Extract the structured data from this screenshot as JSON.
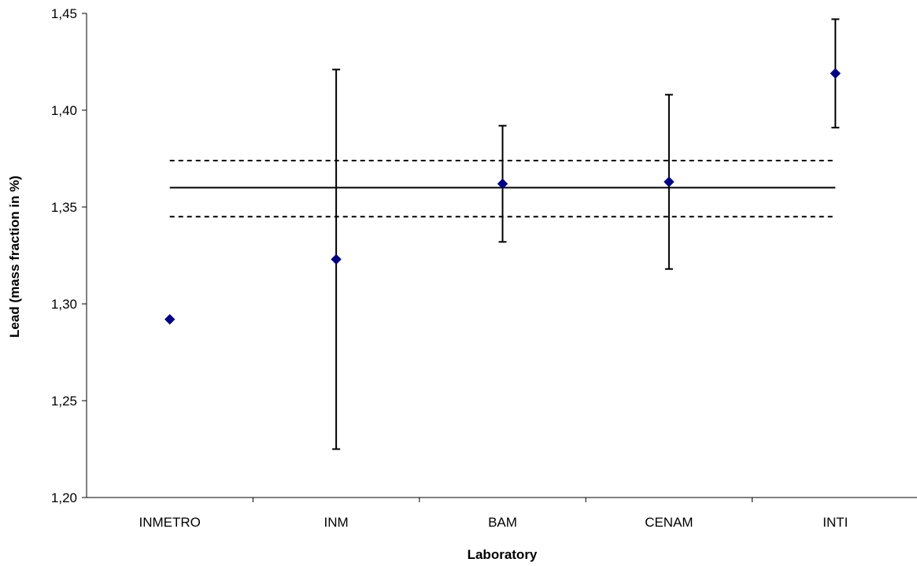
{
  "chart_data": {
    "type": "scatter",
    "xlabel": "Laboratory",
    "ylabel": "Lead (mass fraction in %)",
    "categories": [
      "INMETRO",
      "INM",
      "BAM",
      "CENAM",
      "INTI"
    ],
    "ylim": [
      1.2,
      1.45
    ],
    "yticks": [
      "1,20",
      "1,25",
      "1,30",
      "1,35",
      "1,40",
      "1,45"
    ],
    "series": [
      {
        "values": [
          1.292,
          1.323,
          1.362,
          1.363,
          1.419
        ],
        "error_low": [
          null,
          1.225,
          1.332,
          1.318,
          1.391
        ],
        "error_high": [
          null,
          1.421,
          1.392,
          1.408,
          1.447
        ],
        "marker": "diamond",
        "color": "#000080"
      }
    ],
    "reference_line": {
      "value": 1.36,
      "style": "solid"
    },
    "uncertainty_band": {
      "low": 1.345,
      "high": 1.374,
      "style": "dashed"
    },
    "grid": false,
    "legend": "none"
  }
}
